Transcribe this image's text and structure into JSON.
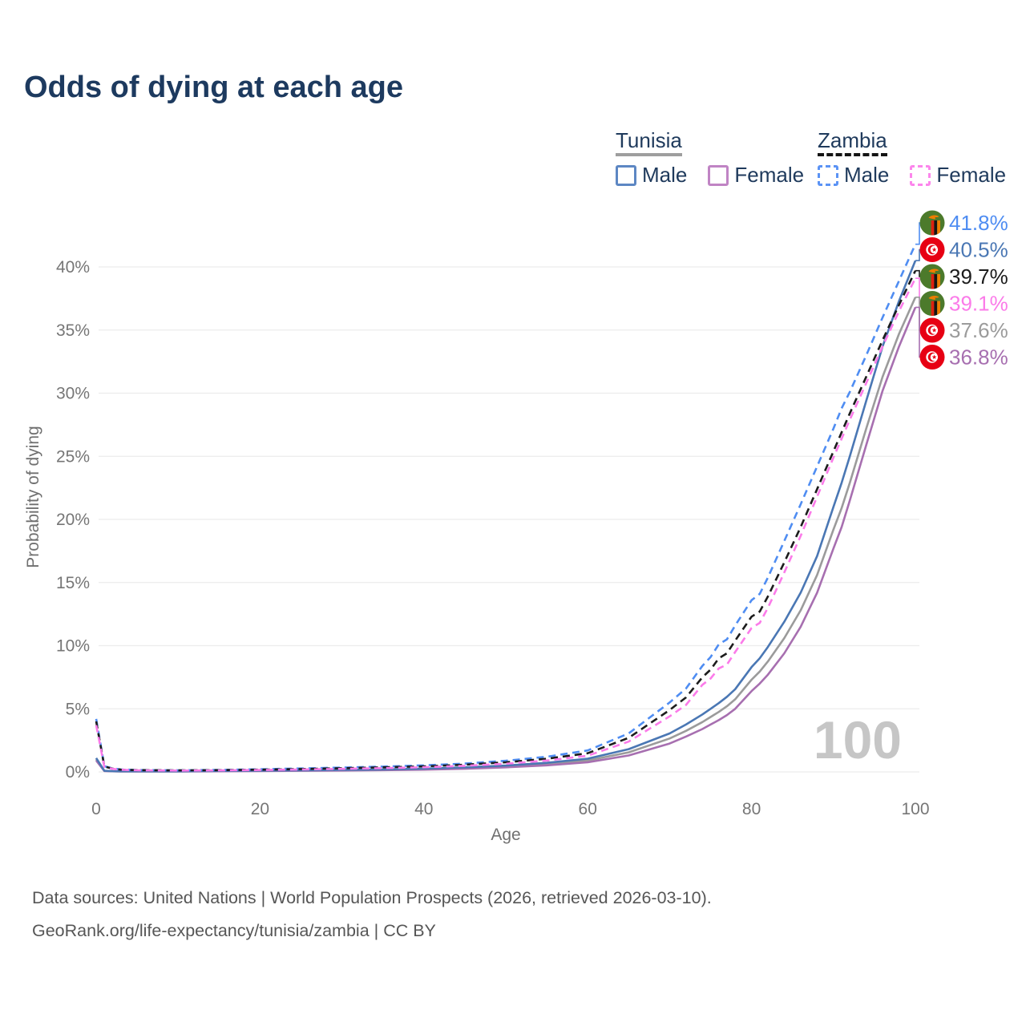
{
  "title": "Odds of dying at each age",
  "legend": {
    "groups": [
      {
        "country": "Tunisia",
        "underline_style": "solid",
        "underline_color": "#9e9e9e",
        "items": [
          {
            "label": "Male",
            "swatch_style": "solid",
            "color": "#5d87c3"
          },
          {
            "label": "Female",
            "swatch_style": "solid",
            "color": "#c084c4"
          }
        ]
      },
      {
        "country": "Zambia",
        "underline_style": "dashed",
        "underline_color": "#141414",
        "items": [
          {
            "label": "Male",
            "swatch_style": "dashed",
            "color": "#5b93f5"
          },
          {
            "label": "Female",
            "swatch_style": "dashed",
            "color": "#fc86ec"
          }
        ]
      }
    ]
  },
  "chart_data": {
    "type": "line",
    "title": "Odds of dying at each age",
    "xlabel": "Age",
    "ylabel": "Probability of dying",
    "x_ticks": [
      0,
      20,
      40,
      60,
      80,
      100
    ],
    "y_ticks_pct": [
      0,
      5,
      10,
      15,
      20,
      25,
      30,
      35,
      40
    ],
    "xlim": [
      0,
      100
    ],
    "ylim_pct": [
      0,
      42
    ],
    "grid": "horizontal",
    "hover_age_label": "100",
    "ages": [
      0,
      1,
      2,
      3,
      5,
      10,
      15,
      20,
      25,
      30,
      35,
      40,
      45,
      50,
      55,
      60,
      65,
      70,
      72,
      74,
      75,
      76,
      77,
      78,
      80,
      81,
      82,
      84,
      86,
      88,
      90,
      91,
      92,
      94,
      96,
      98,
      100
    ],
    "series": [
      {
        "id": "tunisia-both",
        "country": "Tunisia",
        "sex": "Both sexes",
        "color": "#9b9b9b",
        "line_style": "solid",
        "values_pct": [
          1.0,
          0.08,
          0.05,
          0.04,
          0.04,
          0.04,
          0.07,
          0.09,
          0.11,
          0.14,
          0.17,
          0.22,
          0.31,
          0.43,
          0.62,
          0.9,
          1.55,
          2.65,
          3.25,
          3.95,
          4.35,
          4.75,
          5.2,
          5.75,
          7.3,
          7.95,
          8.75,
          10.6,
          12.8,
          15.6,
          19.2,
          20.9,
          22.9,
          27.2,
          31.3,
          34.7,
          37.6
        ]
      },
      {
        "id": "tunisia-female",
        "country": "Tunisia",
        "sex": "Female",
        "color": "#a76fb0",
        "line_style": "solid",
        "values_pct": [
          0.9,
          0.07,
          0.05,
          0.04,
          0.04,
          0.04,
          0.05,
          0.07,
          0.09,
          0.11,
          0.14,
          0.18,
          0.25,
          0.36,
          0.52,
          0.76,
          1.3,
          2.25,
          2.8,
          3.4,
          3.75,
          4.1,
          4.5,
          5.0,
          6.4,
          7.0,
          7.7,
          9.4,
          11.5,
          14.2,
          17.7,
          19.4,
          21.5,
          25.9,
          30.2,
          33.7,
          36.8
        ]
      },
      {
        "id": "tunisia-male",
        "country": "Tunisia",
        "sex": "Male",
        "color": "#4a77b4",
        "line_style": "solid",
        "values_pct": [
          1.1,
          0.09,
          0.06,
          0.05,
          0.05,
          0.05,
          0.08,
          0.11,
          0.13,
          0.16,
          0.2,
          0.26,
          0.36,
          0.5,
          0.72,
          1.05,
          1.8,
          3.05,
          3.75,
          4.55,
          5.0,
          5.45,
          5.95,
          6.55,
          8.3,
          9.0,
          9.9,
          11.9,
          14.2,
          17.1,
          21.0,
          22.9,
          25.0,
          29.4,
          33.7,
          37.3,
          40.5
        ]
      },
      {
        "id": "zambia-male",
        "country": "Zambia",
        "sex": "Male",
        "color": "#4f8df2",
        "line_style": "dashed",
        "values_pct": [
          4.2,
          0.45,
          0.28,
          0.2,
          0.15,
          0.13,
          0.16,
          0.21,
          0.27,
          0.34,
          0.42,
          0.52,
          0.66,
          0.88,
          1.2,
          1.7,
          3.05,
          5.5,
          6.6,
          8.4,
          9.1,
          10.1,
          10.5,
          11.6,
          13.6,
          14.1,
          15.4,
          18.3,
          21.2,
          24.2,
          27.2,
          28.8,
          30.1,
          33.0,
          36.0,
          38.9,
          41.8
        ]
      },
      {
        "id": "zambia-both",
        "country": "Zambia",
        "sex": "Both sexes",
        "color": "#1c1c1c",
        "line_style": "dashed",
        "values_pct": [
          4.0,
          0.42,
          0.26,
          0.18,
          0.14,
          0.12,
          0.14,
          0.18,
          0.23,
          0.29,
          0.36,
          0.44,
          0.57,
          0.76,
          1.04,
          1.48,
          2.7,
          4.9,
          5.9,
          7.5,
          8.1,
          9.0,
          9.4,
          10.4,
          12.3,
          12.7,
          13.9,
          16.6,
          19.4,
          22.4,
          25.4,
          26.9,
          28.4,
          31.3,
          34.2,
          37.0,
          39.7
        ]
      },
      {
        "id": "zambia-female",
        "country": "Zambia",
        "sex": "Female",
        "color": "#fb7be9",
        "line_style": "dashed",
        "values_pct": [
          3.7,
          0.4,
          0.24,
          0.17,
          0.13,
          0.11,
          0.12,
          0.15,
          0.19,
          0.24,
          0.3,
          0.37,
          0.48,
          0.65,
          0.9,
          1.28,
          2.4,
          4.4,
          5.3,
          6.9,
          7.4,
          8.2,
          8.5,
          9.5,
          11.4,
          11.8,
          13.0,
          15.8,
          18.7,
          21.8,
          24.9,
          26.4,
          27.9,
          30.8,
          33.7,
          36.5,
          39.1
        ]
      }
    ],
    "end_labels": [
      {
        "series": "zambia-male",
        "country_flag": "zambia",
        "label": "41.8%",
        "value_pct": 41.8,
        "color": "#4f8df2"
      },
      {
        "series": "tunisia-male",
        "country_flag": "tunisia",
        "label": "40.5%",
        "value_pct": 40.5,
        "color": "#4a77b4"
      },
      {
        "series": "zambia-both",
        "country_flag": "zambia",
        "label": "39.7%",
        "value_pct": 39.7,
        "color": "#1c1c1c"
      },
      {
        "series": "zambia-female",
        "country_flag": "zambia",
        "label": "39.1%",
        "value_pct": 39.1,
        "color": "#fb7be9"
      },
      {
        "series": "tunisia-both",
        "country_flag": "tunisia",
        "label": "37.6%",
        "value_pct": 37.6,
        "color": "#9b9b9b"
      },
      {
        "series": "tunisia-female",
        "country_flag": "tunisia",
        "label": "36.8%",
        "value_pct": 36.8,
        "color": "#a76fb0"
      }
    ],
    "flag_colors": {
      "tunisia": {
        "red": "#E70013",
        "white": "#FFFFFF"
      },
      "zambia": {
        "green": "#4C7A2B",
        "red": "#DE2010",
        "black": "#151515",
        "orange": "#EF7D00"
      }
    }
  },
  "footer": {
    "line1": "Data sources: United Nations | World Population Prospects (2026, retrieved 2026-03-10).",
    "line2": "GeoRank.org/life-expectancy/tunisia/zambia | CC BY"
  }
}
